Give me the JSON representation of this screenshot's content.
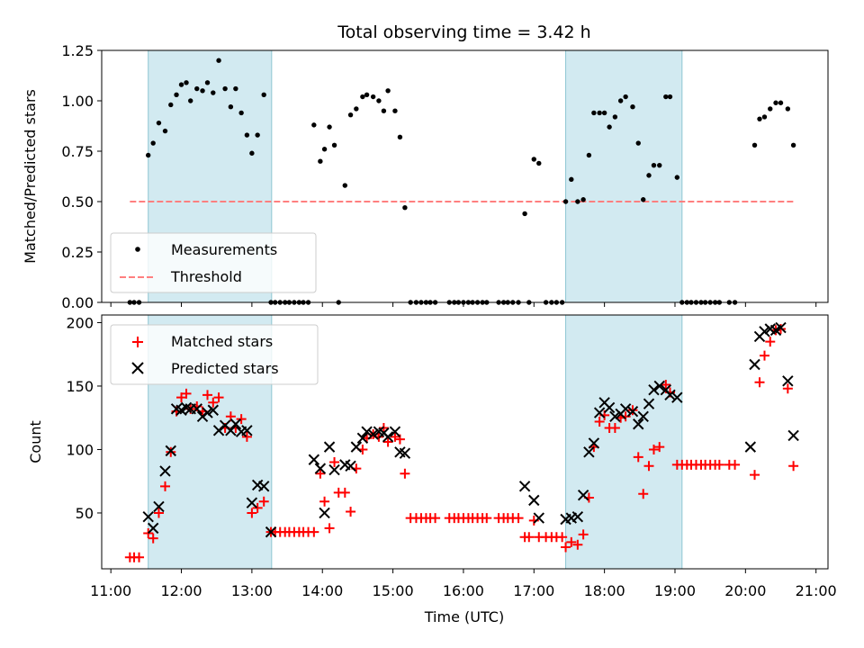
{
  "chart_data": {
    "type": "scatter",
    "title": "Total observing time = 3.42 h",
    "xlabel": "Time (UTC)",
    "x_ticks": [
      "11:00",
      "12:00",
      "13:00",
      "14:00",
      "15:00",
      "16:00",
      "17:00",
      "18:00",
      "19:00",
      "20:00",
      "21:00"
    ],
    "xlim_hours": [
      10.87,
      21.17
    ],
    "shaded_intervals_hours": [
      [
        11.53,
        13.28
      ],
      [
        17.45,
        19.1
      ]
    ],
    "colors": {
      "shade": "#add8e6",
      "threshold": "#ff7f7f",
      "matched": "#ff0000",
      "predicted": "#000000",
      "measurements": "#000000"
    },
    "top_panel": {
      "ylabel": "Matched/Predicted stars",
      "ylim": [
        0,
        1.25
      ],
      "y_ticks": [
        "0.00",
        "0.25",
        "0.50",
        "0.75",
        "1.00",
        "1.25"
      ],
      "legend": [
        "Measurements",
        "Threshold"
      ],
      "legend_position": "lower-left",
      "threshold": {
        "value": 0.5,
        "x_range": [
          11.27,
          20.68
        ]
      },
      "measurements": [
        [
          11.27,
          0
        ],
        [
          11.33,
          0
        ],
        [
          11.4,
          0
        ],
        [
          11.53,
          0.73
        ],
        [
          11.6,
          0.79
        ],
        [
          11.68,
          0.89
        ],
        [
          11.77,
          0.85
        ],
        [
          11.85,
          0.98
        ],
        [
          11.93,
          1.03
        ],
        [
          12.0,
          1.08
        ],
        [
          12.07,
          1.09
        ],
        [
          12.13,
          1.0
        ],
        [
          12.22,
          1.06
        ],
        [
          12.3,
          1.05
        ],
        [
          12.37,
          1.09
        ],
        [
          12.45,
          1.04
        ],
        [
          12.53,
          1.2
        ],
        [
          12.62,
          1.06
        ],
        [
          12.7,
          0.97
        ],
        [
          12.77,
          1.06
        ],
        [
          12.85,
          0.94
        ],
        [
          12.93,
          0.83
        ],
        [
          13.0,
          0.74
        ],
        [
          13.08,
          0.83
        ],
        [
          13.17,
          1.03
        ],
        [
          13.27,
          0
        ],
        [
          13.33,
          0
        ],
        [
          13.4,
          0
        ],
        [
          13.47,
          0
        ],
        [
          13.53,
          0
        ],
        [
          13.6,
          0
        ],
        [
          13.67,
          0
        ],
        [
          13.73,
          0
        ],
        [
          13.8,
          0
        ],
        [
          13.88,
          0.88
        ],
        [
          13.97,
          0.7
        ],
        [
          14.03,
          0.76
        ],
        [
          14.1,
          0.87
        ],
        [
          14.17,
          0.78
        ],
        [
          14.23,
          0
        ],
        [
          14.32,
          0.58
        ],
        [
          14.4,
          0.93
        ],
        [
          14.48,
          0.96
        ],
        [
          14.57,
          1.02
        ],
        [
          14.63,
          1.03
        ],
        [
          14.72,
          1.02
        ],
        [
          14.8,
          1.0
        ],
        [
          14.87,
          0.95
        ],
        [
          14.93,
          1.05
        ],
        [
          15.03,
          0.95
        ],
        [
          15.1,
          0.82
        ],
        [
          15.17,
          0.47
        ],
        [
          15.25,
          0
        ],
        [
          15.33,
          0
        ],
        [
          15.4,
          0
        ],
        [
          15.47,
          0
        ],
        [
          15.53,
          0
        ],
        [
          15.6,
          0
        ],
        [
          15.8,
          0
        ],
        [
          15.87,
          0
        ],
        [
          15.93,
          0
        ],
        [
          16.0,
          0
        ],
        [
          16.07,
          0
        ],
        [
          16.13,
          0
        ],
        [
          16.2,
          0
        ],
        [
          16.27,
          0
        ],
        [
          16.33,
          0
        ],
        [
          16.5,
          0
        ],
        [
          16.57,
          0
        ],
        [
          16.63,
          0
        ],
        [
          16.7,
          0
        ],
        [
          16.78,
          0
        ],
        [
          16.87,
          0.44
        ],
        [
          16.93,
          0
        ],
        [
          17.0,
          0.71
        ],
        [
          17.07,
          0.69
        ],
        [
          17.17,
          0
        ],
        [
          17.25,
          0
        ],
        [
          17.32,
          0
        ],
        [
          17.4,
          0
        ],
        [
          17.45,
          0.5
        ],
        [
          17.53,
          0.61
        ],
        [
          17.62,
          0.5
        ],
        [
          17.7,
          0.51
        ],
        [
          17.78,
          0.73
        ],
        [
          17.85,
          0.94
        ],
        [
          17.93,
          0.94
        ],
        [
          18.0,
          0.94
        ],
        [
          18.07,
          0.87
        ],
        [
          18.15,
          0.92
        ],
        [
          18.23,
          1.0
        ],
        [
          18.3,
          1.02
        ],
        [
          18.4,
          0.97
        ],
        [
          18.48,
          0.79
        ],
        [
          18.55,
          0.51
        ],
        [
          18.63,
          0.63
        ],
        [
          18.7,
          0.68
        ],
        [
          18.78,
          0.68
        ],
        [
          18.87,
          1.02
        ],
        [
          18.93,
          1.02
        ],
        [
          19.03,
          0.62
        ],
        [
          19.1,
          0
        ],
        [
          19.17,
          0
        ],
        [
          19.23,
          0
        ],
        [
          19.3,
          0
        ],
        [
          19.37,
          0
        ],
        [
          19.43,
          0
        ],
        [
          19.5,
          0
        ],
        [
          19.57,
          0
        ],
        [
          19.63,
          0
        ],
        [
          19.77,
          0
        ],
        [
          19.85,
          0
        ],
        [
          20.13,
          0.78
        ],
        [
          20.2,
          0.91
        ],
        [
          20.27,
          0.92
        ],
        [
          20.35,
          0.96
        ],
        [
          20.43,
          0.99
        ],
        [
          20.5,
          0.99
        ],
        [
          20.6,
          0.96
        ],
        [
          20.68,
          0.78
        ]
      ]
    },
    "bottom_panel": {
      "ylabel": "Count",
      "ylim": [
        6,
        206
      ],
      "y_ticks": [
        "50",
        "100",
        "150",
        "200"
      ],
      "legend": [
        "Matched stars",
        "Predicted stars"
      ],
      "legend_position": "upper-left",
      "matched_stars": [
        [
          11.27,
          15
        ],
        [
          11.33,
          15
        ],
        [
          11.4,
          15
        ],
        [
          11.53,
          34
        ],
        [
          11.6,
          30
        ],
        [
          11.68,
          50
        ],
        [
          11.77,
          71
        ],
        [
          11.85,
          98
        ],
        [
          11.93,
          130
        ],
        [
          12.0,
          141
        ],
        [
          12.07,
          144
        ],
        [
          12.13,
          132
        ],
        [
          12.22,
          134
        ],
        [
          12.3,
          130
        ],
        [
          12.37,
          143
        ],
        [
          12.45,
          137
        ],
        [
          12.53,
          141
        ],
        [
          12.62,
          117
        ],
        [
          12.7,
          126
        ],
        [
          12.77,
          117
        ],
        [
          12.85,
          124
        ],
        [
          12.93,
          110
        ],
        [
          13.0,
          50
        ],
        [
          13.08,
          54
        ],
        [
          13.17,
          59
        ],
        [
          13.27,
          35
        ],
        [
          13.33,
          35
        ],
        [
          13.4,
          35
        ],
        [
          13.47,
          35
        ],
        [
          13.53,
          35
        ],
        [
          13.6,
          35
        ],
        [
          13.67,
          35
        ],
        [
          13.73,
          35
        ],
        [
          13.8,
          35
        ],
        [
          13.88,
          35
        ],
        [
          13.97,
          81
        ],
        [
          14.03,
          59
        ],
        [
          14.1,
          38
        ],
        [
          14.17,
          90
        ],
        [
          14.23,
          66
        ],
        [
          14.32,
          66
        ],
        [
          14.4,
          51
        ],
        [
          14.48,
          85
        ],
        [
          14.57,
          100
        ],
        [
          14.63,
          109
        ],
        [
          14.72,
          112
        ],
        [
          14.8,
          110
        ],
        [
          14.87,
          117
        ],
        [
          14.93,
          106
        ],
        [
          15.03,
          110
        ],
        [
          15.1,
          108
        ],
        [
          15.17,
          81
        ],
        [
          15.25,
          46
        ],
        [
          15.33,
          46
        ],
        [
          15.4,
          46
        ],
        [
          15.47,
          46
        ],
        [
          15.53,
          46
        ],
        [
          15.6,
          46
        ],
        [
          15.8,
          46
        ],
        [
          15.87,
          46
        ],
        [
          15.93,
          46
        ],
        [
          16.0,
          46
        ],
        [
          16.07,
          46
        ],
        [
          16.13,
          46
        ],
        [
          16.2,
          46
        ],
        [
          16.27,
          46
        ],
        [
          16.33,
          46
        ],
        [
          16.5,
          46
        ],
        [
          16.57,
          46
        ],
        [
          16.63,
          46
        ],
        [
          16.7,
          46
        ],
        [
          16.78,
          46
        ],
        [
          16.87,
          31
        ],
        [
          16.93,
          31
        ],
        [
          17.0,
          44
        ],
        [
          17.07,
          31
        ],
        [
          17.17,
          31
        ],
        [
          17.25,
          31
        ],
        [
          17.32,
          31
        ],
        [
          17.4,
          31
        ],
        [
          17.45,
          23
        ],
        [
          17.53,
          27
        ],
        [
          17.62,
          25
        ],
        [
          17.7,
          33
        ],
        [
          17.78,
          62
        ],
        [
          17.85,
          102
        ],
        [
          17.93,
          122
        ],
        [
          18.0,
          127
        ],
        [
          18.07,
          117
        ],
        [
          18.15,
          117
        ],
        [
          18.23,
          125
        ],
        [
          18.3,
          126
        ],
        [
          18.4,
          131
        ],
        [
          18.48,
          94
        ],
        [
          18.55,
          65
        ],
        [
          18.63,
          87
        ],
        [
          18.7,
          100
        ],
        [
          18.78,
          102
        ],
        [
          18.87,
          151
        ],
        [
          18.93,
          145
        ],
        [
          19.03,
          88
        ],
        [
          19.1,
          88
        ],
        [
          19.17,
          88
        ],
        [
          19.23,
          88
        ],
        [
          19.3,
          88
        ],
        [
          19.37,
          88
        ],
        [
          19.43,
          88
        ],
        [
          19.5,
          88
        ],
        [
          19.57,
          88
        ],
        [
          19.63,
          88
        ],
        [
          19.77,
          88
        ],
        [
          19.85,
          88
        ],
        [
          20.13,
          80
        ],
        [
          20.2,
          153
        ],
        [
          20.27,
          174
        ],
        [
          20.35,
          185
        ],
        [
          20.43,
          194
        ],
        [
          20.5,
          195
        ],
        [
          20.6,
          148
        ],
        [
          20.68,
          87
        ]
      ],
      "predicted_stars": [
        [
          11.53,
          47
        ],
        [
          11.6,
          38
        ],
        [
          11.68,
          55
        ],
        [
          11.77,
          83
        ],
        [
          11.85,
          99
        ],
        [
          11.93,
          132
        ],
        [
          12.0,
          131
        ],
        [
          12.07,
          133
        ],
        [
          12.13,
          132
        ],
        [
          12.22,
          132
        ],
        [
          12.3,
          126
        ],
        [
          12.37,
          129
        ],
        [
          12.45,
          131
        ],
        [
          12.53,
          115
        ],
        [
          12.62,
          119
        ],
        [
          12.7,
          115
        ],
        [
          12.77,
          120
        ],
        [
          12.85,
          114
        ],
        [
          12.93,
          115
        ],
        [
          13.0,
          58
        ],
        [
          13.08,
          72
        ],
        [
          13.17,
          71
        ],
        [
          13.27,
          35
        ],
        [
          13.88,
          92
        ],
        [
          13.97,
          85
        ],
        [
          14.03,
          50
        ],
        [
          14.1,
          102
        ],
        [
          14.17,
          84
        ],
        [
          14.32,
          88
        ],
        [
          14.4,
          87
        ],
        [
          14.48,
          102
        ],
        [
          14.57,
          109
        ],
        [
          14.63,
          114
        ],
        [
          14.72,
          112
        ],
        [
          14.8,
          114
        ],
        [
          14.87,
          113
        ],
        [
          14.93,
          110
        ],
        [
          15.03,
          114
        ],
        [
          15.1,
          98
        ],
        [
          15.17,
          97
        ],
        [
          16.87,
          71
        ],
        [
          17.0,
          60
        ],
        [
          17.07,
          46
        ],
        [
          17.45,
          45
        ],
        [
          17.53,
          46
        ],
        [
          17.62,
          47
        ],
        [
          17.7,
          64
        ],
        [
          17.78,
          98
        ],
        [
          17.85,
          105
        ],
        [
          17.93,
          129
        ],
        [
          18.0,
          137
        ],
        [
          18.07,
          133
        ],
        [
          18.15,
          126
        ],
        [
          18.23,
          128
        ],
        [
          18.3,
          132
        ],
        [
          18.4,
          130
        ],
        [
          18.48,
          120
        ],
        [
          18.55,
          126
        ],
        [
          18.63,
          136
        ],
        [
          18.7,
          147
        ],
        [
          18.78,
          150
        ],
        [
          18.87,
          147
        ],
        [
          18.93,
          143
        ],
        [
          19.03,
          141
        ],
        [
          20.07,
          102
        ],
        [
          20.13,
          167
        ],
        [
          20.2,
          189
        ],
        [
          20.27,
          193
        ],
        [
          20.35,
          195
        ],
        [
          20.43,
          194
        ],
        [
          20.5,
          196
        ],
        [
          20.6,
          154
        ],
        [
          20.68,
          111
        ]
      ]
    }
  }
}
